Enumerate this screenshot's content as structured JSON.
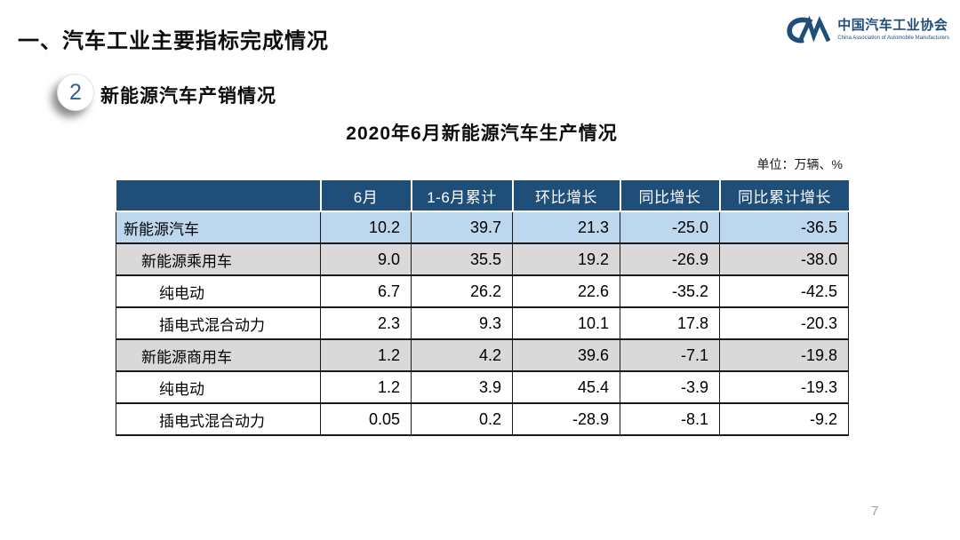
{
  "page": {
    "main_title": "一、汽车工业主要指标完成情况",
    "page_number": "7"
  },
  "logo": {
    "org_name_zh": "中国汽车工业协会",
    "org_name_en": "China Association of Automobile Manufacturers",
    "brand_color": "#1F4E79"
  },
  "section": {
    "number": "2",
    "title": "新能源汽车产销情况"
  },
  "table": {
    "title": "2020年6月新能源汽车生产情况",
    "unit_note": "单位：万辆、%",
    "columns": [
      "",
      "6月",
      "1-6月累计",
      "环比增长",
      "同比增长",
      "同比累计增长"
    ],
    "rows": [
      {
        "label": "新能源汽车",
        "indent": 0,
        "style": "blue",
        "values": [
          "10.2",
          "39.7",
          "21.3",
          "-25.0",
          "-36.5"
        ]
      },
      {
        "label": "新能源乘用车",
        "indent": 1,
        "style": "gray",
        "values": [
          "9.0",
          "35.5",
          "19.2",
          "-26.9",
          "-38.0"
        ]
      },
      {
        "label": "纯电动",
        "indent": 2,
        "style": "white",
        "values": [
          "6.7",
          "26.2",
          "22.6",
          "-35.2",
          "-42.5"
        ]
      },
      {
        "label": "插电式混合动力",
        "indent": 2,
        "style": "white",
        "values": [
          "2.3",
          "9.3",
          "10.1",
          "17.8",
          "-20.3"
        ]
      },
      {
        "label": "新能源商用车",
        "indent": 1,
        "style": "gray",
        "values": [
          "1.2",
          "4.2",
          "39.6",
          "-7.1",
          "-19.8"
        ]
      },
      {
        "label": "纯电动",
        "indent": 2,
        "style": "white",
        "values": [
          "1.2",
          "3.9",
          "45.4",
          "-3.9",
          "-19.3"
        ]
      },
      {
        "label": "插电式混合动力",
        "indent": 2,
        "style": "white",
        "values": [
          "0.05",
          "0.2",
          "-28.9",
          "-8.1",
          "-9.2"
        ]
      }
    ],
    "colors": {
      "header_bg": "#1F4E79",
      "row_blue": "#BDD7EE",
      "row_gray": "#D9D9D9"
    }
  }
}
